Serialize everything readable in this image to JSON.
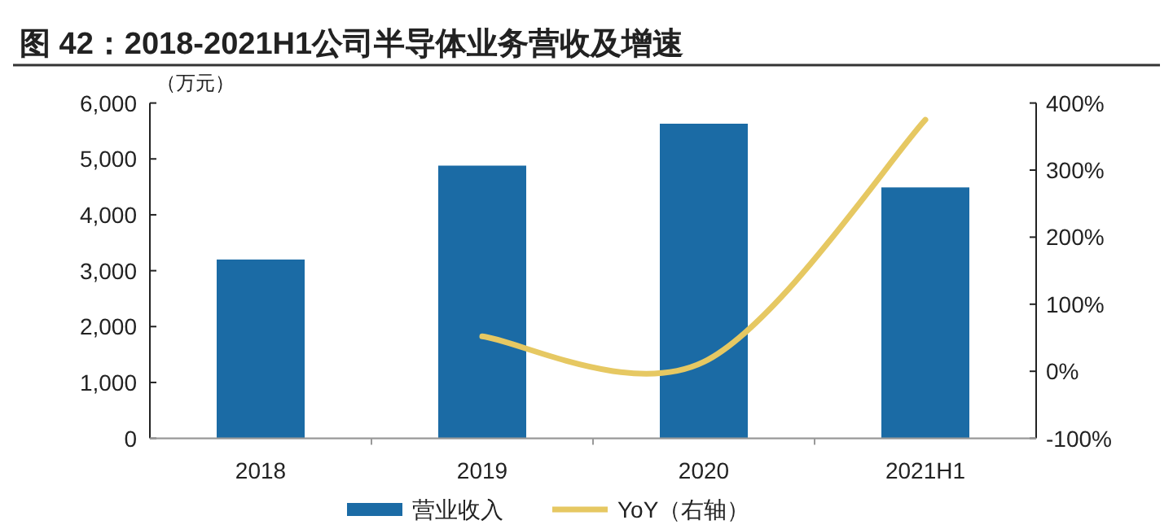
{
  "chart_data": {
    "type": "bar",
    "title": "图 42：2018-2021H1公司半导体业务营收及增速",
    "ylabel": "（万元）",
    "categories": [
      "2018",
      "2019",
      "2020",
      "2021H1"
    ],
    "series": [
      {
        "name": "营业收入",
        "color": "#1b6ba5",
        "values": [
          3200,
          4880,
          5630,
          4490
        ]
      },
      {
        "name": "YoY（右轴）",
        "type": "line",
        "axis": "y2",
        "color": "#e6c862",
        "values": [
          null,
          52,
          14,
          375
        ]
      }
    ],
    "ylim": [
      0,
      6000
    ],
    "yticks": [
      {
        "value": 0,
        "label": "0"
      },
      {
        "value": 1000,
        "label": "1,000"
      },
      {
        "value": 2000,
        "label": "2,000"
      },
      {
        "value": 3000,
        "label": "3,000"
      },
      {
        "value": 4000,
        "label": "4,000"
      },
      {
        "value": 5000,
        "label": "5,000"
      },
      {
        "value": 6000,
        "label": "6,000"
      }
    ],
    "y2lim": [
      -100,
      400
    ],
    "y2ticks": [
      {
        "value": -100,
        "label": "-100%"
      },
      {
        "value": 0,
        "label": "0%"
      },
      {
        "value": 100,
        "label": "100%"
      },
      {
        "value": 200,
        "label": "200%"
      },
      {
        "value": 300,
        "label": "300%"
      },
      {
        "value": 400,
        "label": "400%"
      }
    ],
    "legend": "bottom",
    "grid": false
  }
}
